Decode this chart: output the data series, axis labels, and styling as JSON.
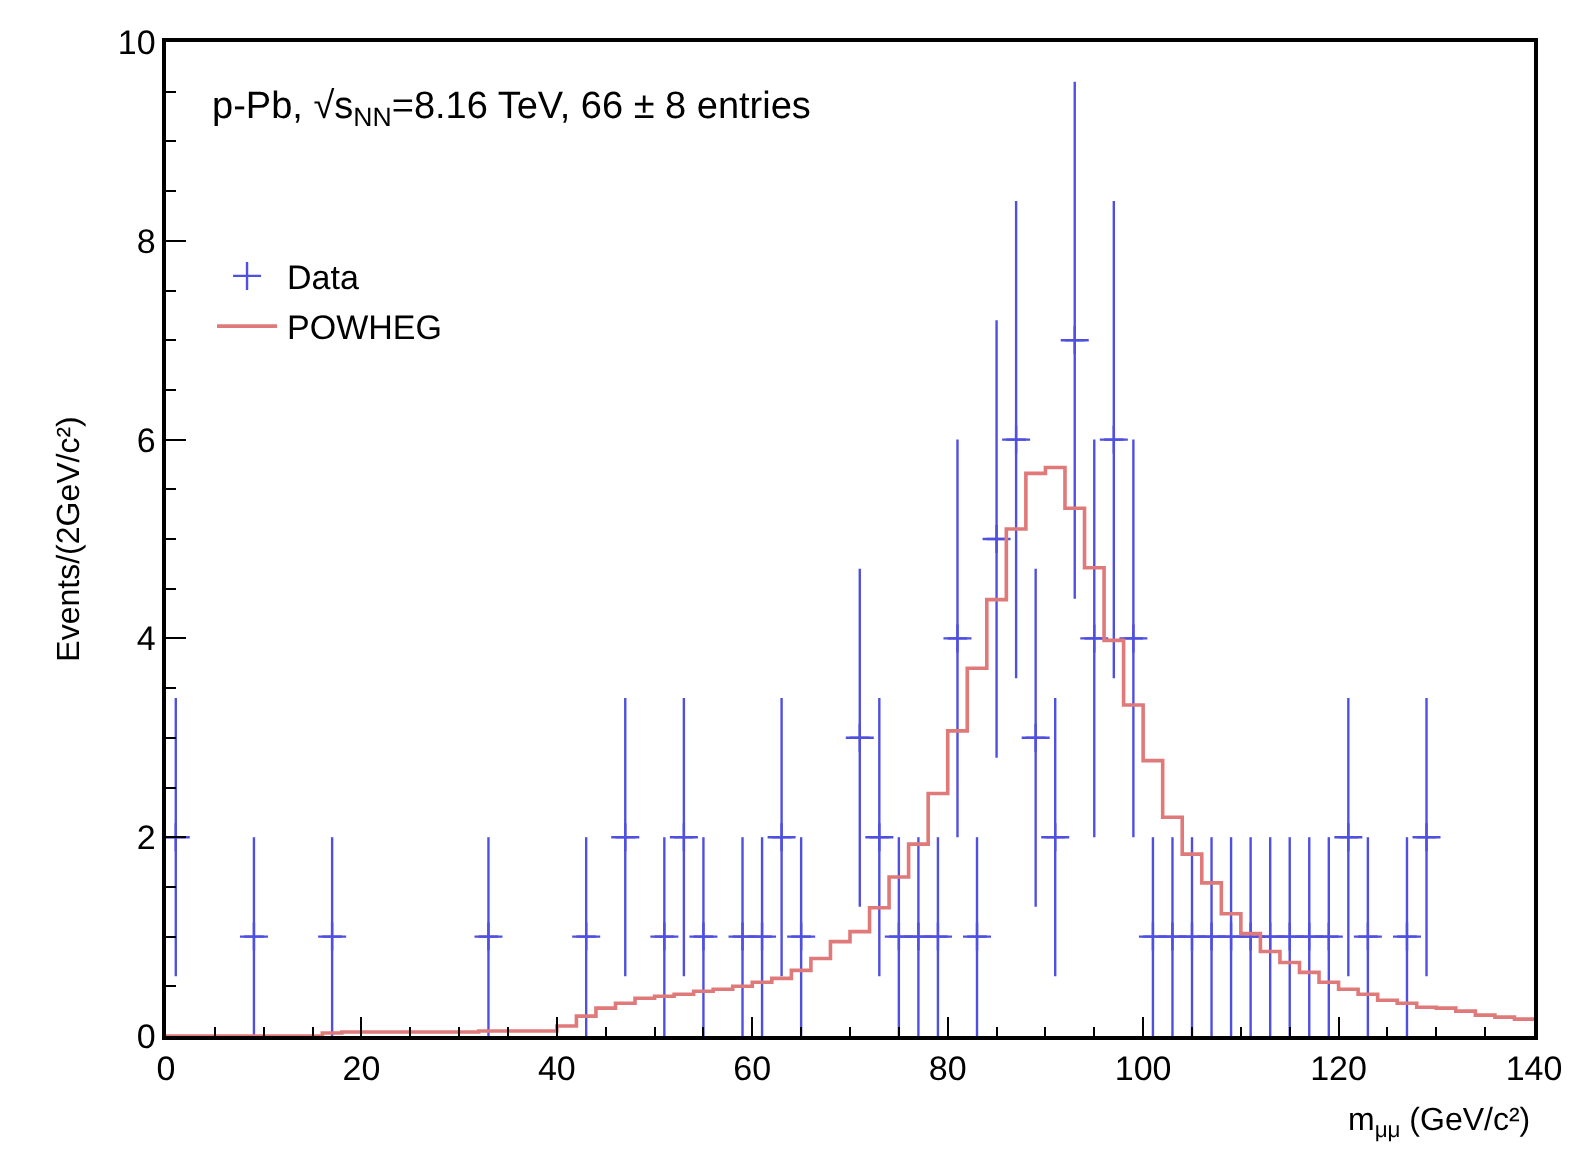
{
  "chart_data": {
    "type": "scatter",
    "xlabel": "m$_{μμ}$ (GeV/c²)",
    "ylabel": "Events/(2GeV/c²)",
    "annotations": [
      "p-Pb, √s$_{NN}$=8.16 TeV, 66 ± 8 entries"
    ],
    "xlim": [
      0,
      140
    ],
    "xticks": [
      0,
      20,
      40,
      60,
      80,
      100,
      120,
      140
    ],
    "ylim": [
      0,
      10
    ],
    "yticks": [
      0,
      2,
      4,
      6,
      8,
      10
    ],
    "legend": "top left",
    "series": [
      {
        "name": "Data",
        "marker": "cross",
        "color": "#5050e0",
        "x": [
          1,
          9,
          17,
          33,
          43,
          47,
          51,
          53,
          55,
          59,
          61,
          63,
          65,
          71,
          73,
          75,
          77,
          79,
          81,
          83,
          85,
          87,
          89,
          91,
          93,
          95,
          97,
          99,
          101,
          103,
          105,
          107,
          109,
          111,
          113,
          115,
          117,
          119,
          121,
          123,
          127,
          129
        ],
        "values": [
          2,
          1,
          1,
          1,
          1,
          2,
          1,
          2,
          1,
          1,
          1,
          2,
          1,
          3,
          2,
          1,
          1,
          1,
          4,
          1,
          5,
          6,
          3,
          2,
          7,
          4,
          6,
          4,
          1,
          1,
          1,
          1,
          1,
          1,
          1,
          1,
          1,
          1,
          2,
          1,
          1,
          2
        ],
        "errors": [
          1.4,
          1,
          1,
          1,
          1,
          1.4,
          1,
          1.4,
          1,
          1,
          1,
          1.4,
          1,
          1.7,
          1.4,
          1,
          1,
          1,
          2,
          1,
          2.2,
          2.4,
          1.7,
          1.4,
          2.6,
          2,
          2.4,
          2,
          1,
          1,
          1,
          1,
          1,
          1,
          1,
          1,
          1,
          1,
          1.4,
          1,
          1,
          1.4
        ],
        "xerrors": [
          1,
          1,
          1,
          1,
          1,
          1,
          1,
          1,
          1,
          1,
          1,
          1,
          1,
          1,
          1,
          1,
          1,
          1,
          1,
          1,
          1,
          1,
          1,
          1,
          1,
          1,
          1,
          1,
          1,
          1,
          1,
          1,
          1,
          1,
          1,
          1,
          1,
          1,
          1,
          1,
          1,
          1
        ]
      },
      {
        "name": "POWHEG",
        "type": "histogram",
        "color": "#e07a7a",
        "bins": [
          0,
          2,
          4,
          6,
          8,
          10,
          12,
          14,
          16,
          18,
          20,
          22,
          24,
          26,
          28,
          30,
          32,
          34,
          36,
          38,
          40,
          42,
          44,
          46,
          48,
          50,
          52,
          54,
          56,
          58,
          60,
          62,
          64,
          66,
          68,
          70,
          72,
          74,
          76,
          78,
          80,
          82,
          84,
          86,
          88,
          90,
          92,
          94,
          96,
          98,
          100,
          102,
          104,
          106,
          108,
          110,
          112,
          114,
          116,
          118,
          120,
          122,
          124,
          126,
          128,
          130,
          132,
          134,
          136,
          138,
          140
        ],
        "values": [
          0,
          0,
          0,
          0,
          0,
          0,
          0,
          0,
          0.03,
          0.04,
          0.04,
          0.04,
          0.04,
          0.04,
          0.04,
          0.04,
          0.05,
          0.05,
          0.05,
          0.05,
          0.1,
          0.2,
          0.28,
          0.33,
          0.38,
          0.4,
          0.42,
          0.45,
          0.47,
          0.5,
          0.54,
          0.58,
          0.66,
          0.78,
          0.95,
          1.05,
          1.29,
          1.6,
          1.93,
          2.44,
          3.07,
          3.7,
          4.39,
          5.1,
          5.66,
          5.72,
          5.31,
          4.71,
          3.98,
          3.33,
          2.77,
          2.2,
          1.83,
          1.54,
          1.23,
          1.03,
          0.85,
          0.74,
          0.64,
          0.54,
          0.47,
          0.42,
          0.36,
          0.33,
          0.29,
          0.28,
          0.25,
          0.21,
          0.19,
          0.17
        ]
      }
    ]
  }
}
